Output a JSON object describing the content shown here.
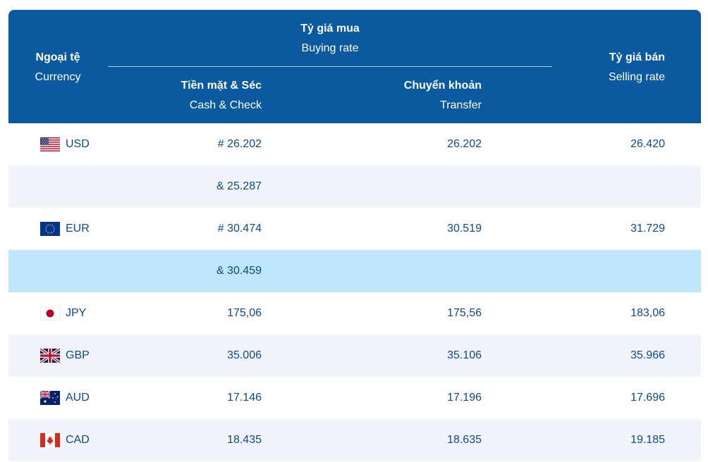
{
  "header": {
    "currency_vi": "Ngoại tệ",
    "currency_en": "Currency",
    "buying_vi": "Tỷ giá mua",
    "buying_en": "Buying rate",
    "cash_vi": "Tiền mặt & Séc",
    "cash_en": "Cash & Check",
    "transfer_vi": "Chuyển khoản",
    "transfer_en": "Transfer",
    "selling_vi": "Tỷ giá bán",
    "selling_en": "Selling rate"
  },
  "rows": [
    {
      "code": "USD",
      "flag": "us-flag-icon",
      "cash": "# 26.202",
      "transfer": "26.202",
      "selling": "26.420"
    },
    {
      "code": "",
      "flag": "",
      "cash": "& 25.287",
      "transfer": "",
      "selling": ""
    },
    {
      "code": "EUR",
      "flag": "eu-flag-icon",
      "cash": "# 30.474",
      "transfer": "30.519",
      "selling": "31.729"
    },
    {
      "code": "",
      "flag": "",
      "cash": "& 30.459",
      "transfer": "",
      "selling": ""
    },
    {
      "code": "JPY",
      "flag": "jp-flag-icon",
      "cash": "175,06",
      "transfer": "175,56",
      "selling": "183,06"
    },
    {
      "code": "GBP",
      "flag": "uk-flag-icon",
      "cash": "35.006",
      "transfer": "35.106",
      "selling": "35.966"
    },
    {
      "code": "AUD",
      "flag": "au-flag-icon",
      "cash": "17.146",
      "transfer": "17.196",
      "selling": "17.696"
    },
    {
      "code": "CAD",
      "flag": "ca-flag-icon",
      "cash": "18.435",
      "transfer": "18.635",
      "selling": "19.185"
    }
  ],
  "colors": {
    "header_bg": "#0b5aa0",
    "text": "#0b4a87",
    "alt_row": "#f1f5f9",
    "highlight_row": "#bfe6fb"
  }
}
